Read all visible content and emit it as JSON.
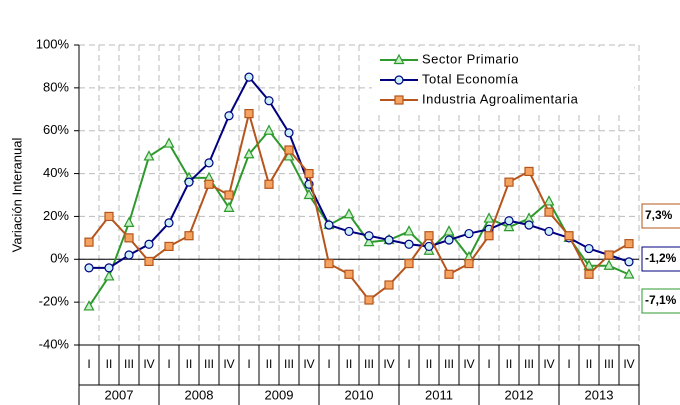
{
  "chart_data": {
    "type": "line",
    "y_axis_label": "Variación Interanual",
    "categories": [
      "I",
      "II",
      "III",
      "IV",
      "I",
      "II",
      "III",
      "IV",
      "I",
      "II",
      "III",
      "IV",
      "I",
      "II",
      "III",
      "IV",
      "I",
      "II",
      "III",
      "IV",
      "I",
      "II",
      "III",
      "IV",
      "I",
      "II",
      "III",
      "IV"
    ],
    "years": [
      "2007",
      "2008",
      "2009",
      "2010",
      "2011",
      "2012",
      "2013"
    ],
    "ylim": [
      -40,
      100
    ],
    "yticks": [
      {
        "value": -40,
        "label": "-40%"
      },
      {
        "value": -20,
        "label": "-20%"
      },
      {
        "value": 0,
        "label": "0%"
      },
      {
        "value": 20,
        "label": "20%"
      },
      {
        "value": 40,
        "label": "40%"
      },
      {
        "value": 60,
        "label": "60%"
      },
      {
        "value": 80,
        "label": "80%"
      },
      {
        "value": 100,
        "label": "100%"
      }
    ],
    "grid": true,
    "legend": "top-right",
    "series": [
      {
        "name": "Sector Primario",
        "color": "#2e9a2e",
        "marker": "triangle",
        "marker_fill": "#c8f0c8",
        "end_label": "-7,1%",
        "values": [
          -22,
          -8,
          17,
          48,
          54,
          38,
          38,
          24,
          49,
          60,
          48,
          30,
          16,
          21,
          8,
          9,
          13,
          4,
          13,
          1,
          19,
          15,
          19,
          27,
          10,
          -3,
          -3,
          -7.1
        ]
      },
      {
        "name": "Total Economía",
        "color": "#000080",
        "marker": "circle",
        "marker_fill": "#cdeff7",
        "end_label": "-1,2%",
        "values": [
          -4,
          -4,
          2,
          7,
          17,
          36,
          45,
          67,
          85,
          74,
          59,
          35,
          16,
          13,
          11,
          9,
          7,
          6,
          9,
          12,
          14,
          18,
          16,
          13,
          10,
          5,
          2,
          -1.2
        ]
      },
      {
        "name": "Industria Agroalimentaria",
        "color": "#b5541b",
        "marker": "square",
        "marker_fill": "#f4a460",
        "end_label": "7,3%",
        "values": [
          8,
          20,
          10,
          -1,
          6,
          11,
          35,
          30,
          68,
          35,
          51,
          40,
          -2,
          -7,
          -19,
          -12,
          -2,
          11,
          -7,
          -2,
          11,
          36,
          41,
          22,
          11,
          -7,
          2,
          7.3
        ]
      }
    ]
  }
}
